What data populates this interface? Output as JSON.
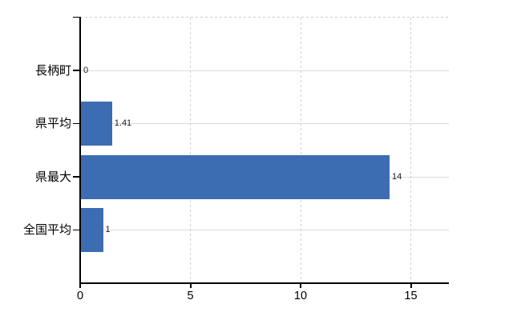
{
  "chart_data": {
    "type": "bar",
    "orientation": "horizontal",
    "title": "",
    "categories": [
      "長柄町",
      "県平均",
      "県最大",
      "全国平均"
    ],
    "values": [
      0,
      1.41,
      14,
      1
    ],
    "value_labels": [
      "0",
      "1.41",
      "14",
      "1"
    ],
    "x_ticks": [
      0,
      5,
      10,
      15
    ],
    "x_tick_labels": [
      "0",
      "5",
      "10",
      "15"
    ],
    "xlim": [
      0,
      16.7
    ],
    "grid": true,
    "legend": "none",
    "colors": {
      "bar": "#3c6cb2",
      "h_gridline": "#d8ded2",
      "v_gridline": "#d4cdd4",
      "top_border": "#cccccc",
      "axis": "#000000",
      "text": "#000000"
    }
  }
}
